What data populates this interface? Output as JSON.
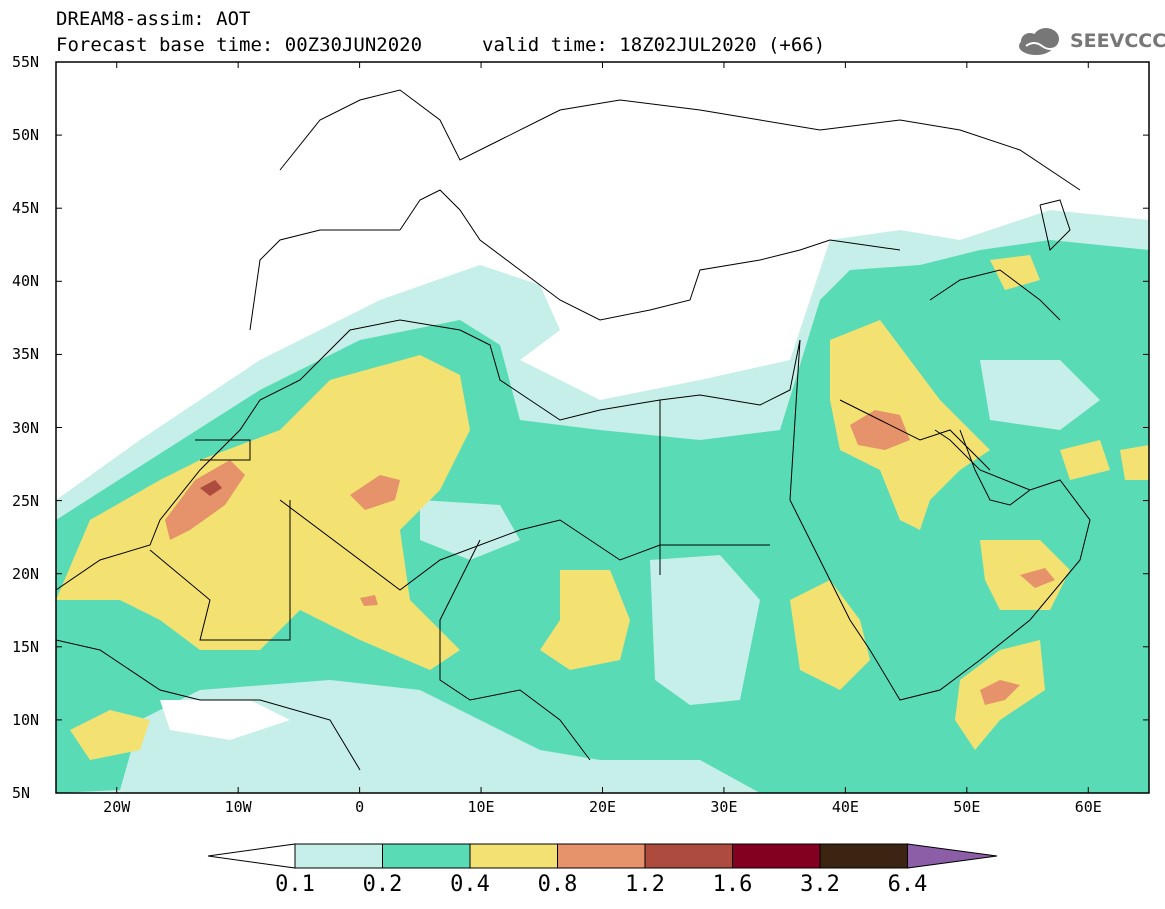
{
  "header": {
    "title": "DREAM8-assim: AOT",
    "forecast_base": "Forecast base time: 00Z30JUN2020",
    "valid_time": "valid time: 18Z02JUL2020 (+66)"
  },
  "logo": {
    "text": "SEEVCCC",
    "icon": "cloud-logo-icon"
  },
  "map": {
    "variable": "AOT",
    "lon_range": [
      -25,
      65
    ],
    "lat_range": [
      5,
      55
    ],
    "lat_labels": [
      "55N",
      "50N",
      "45N",
      "40N",
      "35N",
      "30N",
      "25N",
      "20N",
      "15N",
      "10N",
      "5N"
    ],
    "lon_labels": [
      "20W",
      "10W",
      "0",
      "10E",
      "20E",
      "30E",
      "40E",
      "50E",
      "60E"
    ]
  },
  "colorbar": {
    "labels": [
      "0.1",
      "0.2",
      "0.4",
      "0.8",
      "1.2",
      "1.6",
      "3.2",
      "6.4"
    ],
    "colors": [
      "#ffffff",
      "#c5efe8",
      "#59dcb6",
      "#f3e272",
      "#e6926a",
      "#ad4b3f",
      "#830021",
      "#3b2512",
      "#8d5ea8"
    ]
  }
}
